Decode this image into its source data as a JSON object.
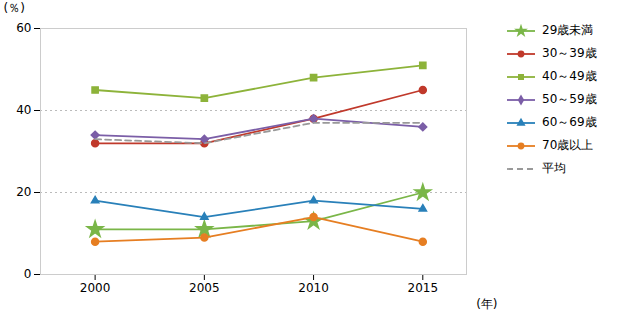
{
  "chart_data": {
    "type": "line",
    "x": [
      2000,
      2005,
      2010,
      2015
    ],
    "xlim": [
      1997.5,
      2017
    ],
    "xticks": [
      2000,
      2005,
      2010,
      2015
    ],
    "ylim": [
      0,
      60
    ],
    "yticks": [
      0,
      20,
      40,
      60
    ],
    "xlabel": "(年)",
    "ylabel": "(％)",
    "grid": true,
    "legend": "upper right",
    "series": [
      {
        "name": "29歳未満",
        "color": "#7ab648",
        "marker": "star",
        "line_style": "solid",
        "values": [
          11,
          11,
          13,
          20
        ]
      },
      {
        "name": "30～39歳",
        "color": "#c0392b",
        "marker": "circle",
        "line_style": "solid",
        "values": [
          32,
          32,
          38,
          45
        ]
      },
      {
        "name": "40～49歳",
        "color": "#8db33a",
        "marker": "square",
        "line_style": "solid",
        "values": [
          45,
          43,
          48,
          51
        ]
      },
      {
        "name": "50～59歳",
        "color": "#7b5ea7",
        "marker": "diamond",
        "line_style": "solid",
        "values": [
          34,
          33,
          38,
          36
        ]
      },
      {
        "name": "60～69歳",
        "color": "#2980b9",
        "marker": "triangle",
        "line_style": "solid",
        "values": [
          18,
          14,
          18,
          16
        ]
      },
      {
        "name": "70歳以上",
        "color": "#e67e22",
        "marker": "circle",
        "line_style": "solid",
        "values": [
          8,
          9,
          14,
          8
        ]
      },
      {
        "name": "平均",
        "color": "#999999",
        "marker": "none",
        "line_style": "dashed",
        "values": [
          33,
          32,
          37,
          37
        ]
      }
    ]
  }
}
